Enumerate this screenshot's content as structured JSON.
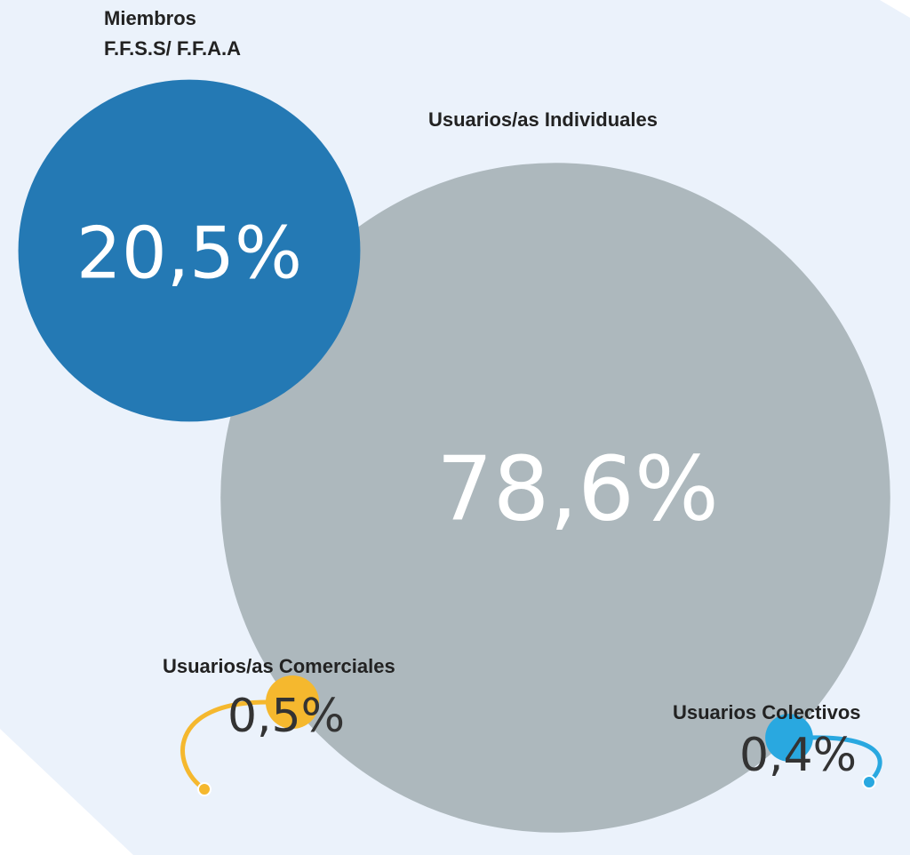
{
  "chart_data": {
    "type": "bubble",
    "categories": [
      "Miembros\nF.F.S.S/ F.F.A.A",
      "Usuarios/as Individuales",
      "Usuarios/as Comerciales",
      "Usuarios Colectivos"
    ],
    "values": [
      20.5,
      78.6,
      0.5,
      0.4
    ],
    "value_labels": [
      "20,5%",
      "78,6%",
      "0,5%",
      "0,4%"
    ],
    "colors": [
      "#2479b4",
      "#adb8bd",
      "#f5b82e",
      "#29a8e0"
    ]
  }
}
